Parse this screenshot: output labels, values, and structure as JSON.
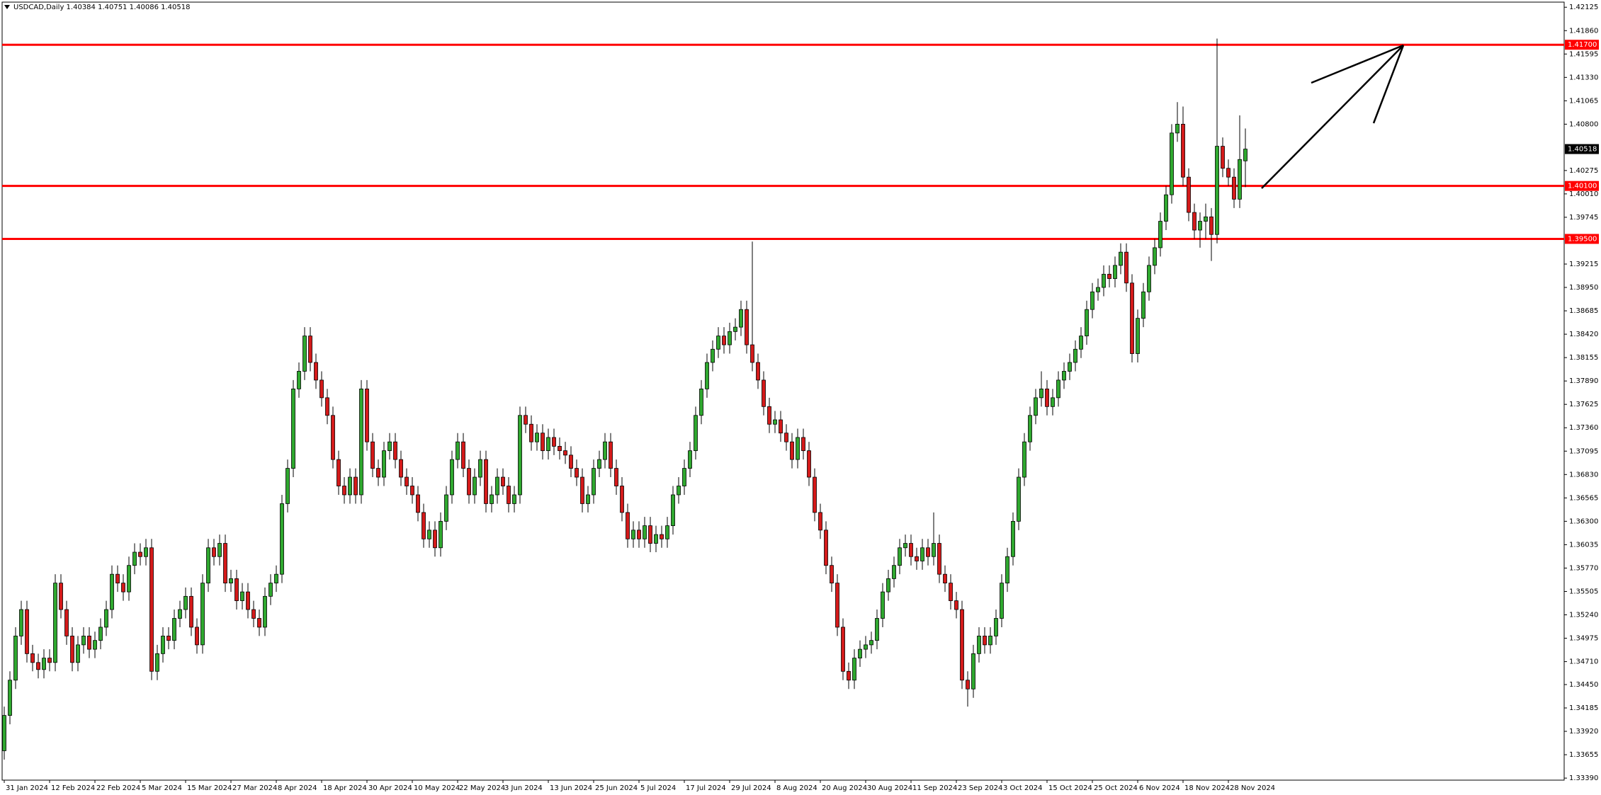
{
  "chart_data": {
    "type": "candlestick",
    "title": "USDCAD,Daily  1.40384 1.40751 1.40086 1.40518",
    "up_color": "#2fa82f",
    "down_color": "#d41a1a",
    "line_color": "#ff0000",
    "ylim": [
      1.33367,
      1.42183
    ],
    "yticks": [
      {
        "value": 1.42125,
        "label": "1.42125"
      },
      {
        "value": 1.4186,
        "label": "1.41860"
      },
      {
        "value": 1.41595,
        "label": "1.41595"
      },
      {
        "value": 1.4133,
        "label": "1.41330"
      },
      {
        "value": 1.41065,
        "label": "1.41065"
      },
      {
        "value": 1.408,
        "label": "1.40800"
      },
      {
        "value": 1.40275,
        "label": "1.40275"
      },
      {
        "value": 1.4001,
        "label": "1.40010"
      },
      {
        "value": 1.39745,
        "label": "1.39745"
      },
      {
        "value": 1.39215,
        "label": "1.39215"
      },
      {
        "value": 1.3895,
        "label": "1.38950"
      },
      {
        "value": 1.38685,
        "label": "1.38685"
      },
      {
        "value": 1.3842,
        "label": "1.38420"
      },
      {
        "value": 1.38155,
        "label": "1.38155"
      },
      {
        "value": 1.3789,
        "label": "1.37890"
      },
      {
        "value": 1.37625,
        "label": "1.37625"
      },
      {
        "value": 1.3736,
        "label": "1.37360"
      },
      {
        "value": 1.37095,
        "label": "1.37095"
      },
      {
        "value": 1.3683,
        "label": "1.36830"
      },
      {
        "value": 1.36565,
        "label": "1.36565"
      },
      {
        "value": 1.363,
        "label": "1.36300"
      },
      {
        "value": 1.36035,
        "label": "1.36035"
      },
      {
        "value": 1.3577,
        "label": "1.35770"
      },
      {
        "value": 1.35505,
        "label": "1.35505"
      },
      {
        "value": 1.3524,
        "label": "1.35240"
      },
      {
        "value": 1.34975,
        "label": "1.34975"
      },
      {
        "value": 1.3471,
        "label": "1.34710"
      },
      {
        "value": 1.3445,
        "label": "1.34450"
      },
      {
        "value": 1.34185,
        "label": "1.34185"
      },
      {
        "value": 1.3392,
        "label": "1.33920"
      },
      {
        "value": 1.33655,
        "label": "1.33655"
      },
      {
        "value": 1.3339,
        "label": "1.33390"
      }
    ],
    "hlines": [
      {
        "value": 1.417,
        "label": "1.41700"
      },
      {
        "value": 1.401,
        "label": "1.40100"
      },
      {
        "value": 1.395,
        "label": "1.39500"
      }
    ],
    "last_price": {
      "value": 1.40518,
      "label": "1.40518"
    },
    "categories": [
      "31 Jan 2024",
      null,
      null,
      null,
      null,
      null,
      null,
      null,
      "12 Feb 2024",
      null,
      null,
      null,
      null,
      null,
      null,
      null,
      "22 Feb 2024",
      null,
      null,
      null,
      null,
      null,
      null,
      null,
      "5 Mar 2024",
      null,
      null,
      null,
      null,
      null,
      null,
      null,
      "15 Mar 2024",
      null,
      null,
      null,
      null,
      null,
      null,
      null,
      "27 Mar 2024",
      null,
      null,
      null,
      null,
      null,
      null,
      null,
      "8 Apr 2024",
      null,
      null,
      null,
      null,
      null,
      null,
      null,
      "18 Apr 2024",
      null,
      null,
      null,
      null,
      null,
      null,
      null,
      "30 Apr 2024",
      null,
      null,
      null,
      null,
      null,
      null,
      null,
      "10 May 2024",
      null,
      null,
      null,
      null,
      null,
      null,
      null,
      "22 May 2024",
      null,
      null,
      null,
      null,
      null,
      null,
      null,
      "3 Jun 2024",
      null,
      null,
      null,
      null,
      null,
      null,
      null,
      "13 Jun 2024",
      null,
      null,
      null,
      null,
      null,
      null,
      null,
      "25 Jun 2024",
      null,
      null,
      null,
      null,
      null,
      null,
      null,
      "5 Jul 2024",
      null,
      null,
      null,
      null,
      null,
      null,
      null,
      "17 Jul 2024",
      null,
      null,
      null,
      null,
      null,
      null,
      null,
      "29 Jul 2024",
      null,
      null,
      null,
      null,
      null,
      null,
      null,
      "8 Aug 2024",
      null,
      null,
      null,
      null,
      null,
      null,
      null,
      "20 Aug 2024",
      null,
      null,
      null,
      null,
      null,
      null,
      null,
      "30 Aug 2024",
      null,
      null,
      null,
      null,
      null,
      null,
      null,
      "11 Sep 2024",
      null,
      null,
      null,
      null,
      null,
      null,
      null,
      "23 Sep 2024",
      null,
      null,
      null,
      null,
      null,
      null,
      null,
      "3 Oct 2024",
      null,
      null,
      null,
      null,
      null,
      null,
      null,
      "15 Oct 2024",
      null,
      null,
      null,
      null,
      null,
      null,
      null,
      "25 Oct 2024",
      null,
      null,
      null,
      null,
      null,
      null,
      null,
      "6 Nov 2024",
      null,
      null,
      null,
      null,
      null,
      null,
      null,
      "18 Nov 2024",
      null,
      null,
      null,
      null,
      null,
      null,
      null,
      "28 Nov 2024",
      null,
      null,
      null
    ],
    "open": [
      1.337,
      1.341,
      1.345,
      1.35,
      1.353,
      1.348,
      1.347,
      1.3462,
      1.3475,
      1.347,
      1.356,
      1.353,
      1.35,
      1.347,
      1.349,
      1.35,
      1.3485,
      1.3495,
      1.351,
      1.353,
      1.357,
      1.356,
      1.355,
      1.358,
      1.3595,
      1.359,
      1.36,
      1.346,
      1.348,
      1.35,
      1.3495,
      1.352,
      1.353,
      1.3545,
      1.351,
      1.349,
      1.356,
      1.36,
      1.359,
      1.3605,
      1.356,
      1.3565,
      1.354,
      1.355,
      1.353,
      1.352,
      1.351,
      1.3545,
      1.356,
      1.357,
      1.365,
      1.369,
      1.378,
      1.38,
      1.384,
      1.381,
      1.379,
      1.377,
      1.375,
      1.37,
      1.367,
      1.366,
      1.368,
      1.366,
      1.378,
      1.372,
      1.369,
      1.368,
      1.371,
      1.372,
      1.37,
      1.368,
      1.367,
      1.366,
      1.364,
      1.361,
      1.362,
      1.36,
      1.363,
      1.366,
      1.37,
      1.372,
      1.369,
      1.366,
      1.368,
      1.37,
      1.365,
      1.366,
      1.368,
      1.367,
      1.365,
      1.366,
      1.375,
      1.374,
      1.372,
      1.373,
      1.371,
      1.3725,
      1.3715,
      1.371,
      1.3705,
      1.369,
      1.368,
      1.365,
      1.366,
      1.369,
      1.37,
      1.372,
      1.369,
      1.367,
      1.364,
      1.361,
      1.362,
      1.361,
      1.3625,
      1.3605,
      1.3615,
      1.361,
      1.3625,
      1.366,
      1.367,
      1.369,
      1.371,
      1.375,
      1.378,
      1.381,
      1.3825,
      1.384,
      1.383,
      1.3845,
      1.385,
      1.387,
      1.383,
      1.381,
      1.379,
      1.376,
      1.374,
      1.3745,
      1.373,
      1.372,
      1.37,
      1.3725,
      1.371,
      1.368,
      1.364,
      1.362,
      1.358,
      1.356,
      1.351,
      1.346,
      1.345,
      1.3475,
      1.3485,
      1.349,
      1.3495,
      1.352,
      1.355,
      1.3565,
      1.358,
      1.36,
      1.3605,
      1.359,
      1.3585,
      1.36,
      1.359,
      1.3605,
      1.357,
      1.356,
      1.354,
      1.353,
      1.345,
      1.344,
      1.348,
      1.35,
      1.349,
      1.35,
      1.352,
      1.356,
      1.359,
      1.363,
      1.368,
      1.372,
      1.375,
      1.377,
      1.378,
      1.376,
      1.377,
      1.379,
      1.38,
      1.381,
      1.3825,
      1.384,
      1.387,
      1.389,
      1.3895,
      1.391,
      1.3905,
      1.392,
      1.3935,
      1.39,
      1.382,
      1.386,
      1.389,
      1.392,
      1.394,
      1.397,
      1.4,
      1.407,
      1.408,
      1.402,
      1.398,
      1.396,
      1.397,
      1.3975,
      1.3955,
      1.4055,
      1.403,
      1.402,
      1.3995,
      1.40384
    ],
    "high": [
      1.342,
      1.346,
      1.351,
      1.354,
      1.354,
      1.349,
      1.348,
      1.3485,
      1.3485,
      1.357,
      1.357,
      1.354,
      1.351,
      1.35,
      1.351,
      1.351,
      1.3505,
      1.352,
      1.354,
      1.358,
      1.358,
      1.357,
      1.359,
      1.3605,
      1.3605,
      1.361,
      1.361,
      1.349,
      1.351,
      1.351,
      1.353,
      1.354,
      1.3555,
      1.3555,
      1.352,
      1.357,
      1.361,
      1.361,
      1.3615,
      1.3615,
      1.3575,
      1.3575,
      1.356,
      1.356,
      1.354,
      1.353,
      1.3555,
      1.357,
      1.358,
      1.366,
      1.37,
      1.379,
      1.381,
      1.385,
      1.385,
      1.382,
      1.38,
      1.378,
      1.376,
      1.371,
      1.368,
      1.369,
      1.369,
      1.379,
      1.379,
      1.373,
      1.37,
      1.372,
      1.373,
      1.373,
      1.371,
      1.369,
      1.368,
      1.367,
      1.365,
      1.363,
      1.363,
      1.364,
      1.367,
      1.371,
      1.373,
      1.373,
      1.37,
      1.369,
      1.371,
      1.371,
      1.367,
      1.369,
      1.369,
      1.368,
      1.367,
      1.376,
      1.376,
      1.375,
      1.374,
      1.374,
      1.3735,
      1.3735,
      1.3725,
      1.372,
      1.3715,
      1.37,
      1.369,
      1.367,
      1.37,
      1.371,
      1.373,
      1.373,
      1.37,
      1.368,
      1.365,
      1.363,
      1.363,
      1.3635,
      1.3635,
      1.3625,
      1.3625,
      1.3635,
      1.367,
      1.368,
      1.37,
      1.372,
      1.376,
      1.379,
      1.382,
      1.3835,
      1.385,
      1.385,
      1.3855,
      1.386,
      1.388,
      1.388,
      1.3947,
      1.382,
      1.38,
      1.377,
      1.3755,
      1.3755,
      1.374,
      1.373,
      1.3735,
      1.3735,
      1.372,
      1.369,
      1.365,
      1.363,
      1.359,
      1.357,
      1.352,
      1.347,
      1.3485,
      1.3495,
      1.35,
      1.3505,
      1.353,
      1.356,
      1.3575,
      1.359,
      1.361,
      1.3615,
      1.3615,
      1.36,
      1.361,
      1.361,
      1.364,
      1.3615,
      1.358,
      1.357,
      1.355,
      1.354,
      1.346,
      1.349,
      1.351,
      1.351,
      1.351,
      1.353,
      1.357,
      1.36,
      1.364,
      1.369,
      1.373,
      1.376,
      1.378,
      1.38,
      1.379,
      1.378,
      1.38,
      1.381,
      1.382,
      1.3835,
      1.385,
      1.388,
      1.39,
      1.3905,
      1.392,
      1.392,
      1.393,
      1.3945,
      1.3945,
      1.391,
      1.387,
      1.39,
      1.393,
      1.395,
      1.398,
      1.401,
      1.408,
      1.4105,
      1.41,
      1.403,
      1.399,
      1.398,
      1.399,
      1.3985,
      1.4177,
      1.4065,
      1.404,
      1.403,
      1.409,
      1.40751
    ],
    "low": [
      1.336,
      1.34,
      1.344,
      1.349,
      1.347,
      1.346,
      1.3452,
      1.3452,
      1.346,
      1.346,
      1.352,
      1.349,
      1.346,
      1.346,
      1.348,
      1.3475,
      1.3475,
      1.3485,
      1.35,
      1.352,
      1.355,
      1.354,
      1.354,
      1.357,
      1.358,
      1.358,
      1.345,
      1.345,
      1.347,
      1.3485,
      1.3485,
      1.351,
      1.352,
      1.35,
      1.348,
      1.348,
      1.355,
      1.358,
      1.358,
      1.355,
      1.355,
      1.353,
      1.353,
      1.352,
      1.351,
      1.35,
      1.35,
      1.3535,
      1.355,
      1.356,
      1.364,
      1.368,
      1.377,
      1.379,
      1.38,
      1.378,
      1.376,
      1.374,
      1.369,
      1.366,
      1.365,
      1.365,
      1.365,
      1.365,
      1.371,
      1.368,
      1.367,
      1.367,
      1.37,
      1.369,
      1.367,
      1.366,
      1.365,
      1.363,
      1.36,
      1.36,
      1.359,
      1.359,
      1.362,
      1.365,
      1.369,
      1.368,
      1.365,
      1.365,
      1.367,
      1.364,
      1.364,
      1.365,
      1.366,
      1.364,
      1.364,
      1.365,
      1.373,
      1.371,
      1.371,
      1.37,
      1.37,
      1.3705,
      1.37,
      1.3695,
      1.368,
      1.367,
      1.364,
      1.364,
      1.365,
      1.368,
      1.369,
      1.368,
      1.366,
      1.363,
      1.36,
      1.36,
      1.36,
      1.36,
      1.3595,
      1.3595,
      1.36,
      1.36,
      1.3615,
      1.365,
      1.366,
      1.368,
      1.37,
      1.374,
      1.377,
      1.38,
      1.3815,
      1.382,
      1.382,
      1.3835,
      1.384,
      1.382,
      1.38,
      1.378,
      1.375,
      1.373,
      1.373,
      1.372,
      1.371,
      1.369,
      1.369,
      1.37,
      1.367,
      1.363,
      1.361,
      1.357,
      1.355,
      1.35,
      1.345,
      1.344,
      1.344,
      1.3465,
      1.3475,
      1.348,
      1.3485,
      1.351,
      1.354,
      1.3555,
      1.357,
      1.359,
      1.358,
      1.3575,
      1.3575,
      1.358,
      1.358,
      1.356,
      1.355,
      1.353,
      1.352,
      1.344,
      1.342,
      1.343,
      1.347,
      1.348,
      1.348,
      1.349,
      1.351,
      1.355,
      1.358,
      1.362,
      1.367,
      1.371,
      1.374,
      1.376,
      1.375,
      1.375,
      1.376,
      1.378,
      1.379,
      1.38,
      1.3815,
      1.383,
      1.386,
      1.388,
      1.3885,
      1.3895,
      1.3895,
      1.391,
      1.389,
      1.381,
      1.381,
      1.385,
      1.388,
      1.391,
      1.393,
      1.396,
      1.399,
      1.406,
      1.401,
      1.397,
      1.395,
      1.394,
      1.395,
      1.3925,
      1.3945,
      1.402,
      1.401,
      1.3985,
      1.3985,
      1.40086
    ],
    "close": [
      1.341,
      1.345,
      1.35,
      1.353,
      1.348,
      1.347,
      1.3462,
      1.3475,
      1.347,
      1.356,
      1.353,
      1.35,
      1.347,
      1.349,
      1.35,
      1.3485,
      1.3495,
      1.351,
      1.353,
      1.357,
      1.356,
      1.355,
      1.358,
      1.3595,
      1.359,
      1.36,
      1.346,
      1.348,
      1.35,
      1.3495,
      1.352,
      1.353,
      1.3545,
      1.351,
      1.349,
      1.356,
      1.36,
      1.359,
      1.3605,
      1.356,
      1.3565,
      1.354,
      1.355,
      1.353,
      1.352,
      1.351,
      1.3545,
      1.356,
      1.357,
      1.365,
      1.369,
      1.378,
      1.38,
      1.384,
      1.381,
      1.379,
      1.377,
      1.375,
      1.37,
      1.367,
      1.366,
      1.368,
      1.366,
      1.378,
      1.372,
      1.369,
      1.368,
      1.371,
      1.372,
      1.37,
      1.368,
      1.367,
      1.366,
      1.364,
      1.361,
      1.362,
      1.36,
      1.363,
      1.366,
      1.37,
      1.372,
      1.369,
      1.366,
      1.368,
      1.37,
      1.365,
      1.366,
      1.368,
      1.367,
      1.365,
      1.366,
      1.375,
      1.374,
      1.372,
      1.373,
      1.371,
      1.3725,
      1.3715,
      1.371,
      1.3705,
      1.369,
      1.368,
      1.365,
      1.366,
      1.369,
      1.37,
      1.372,
      1.369,
      1.367,
      1.364,
      1.361,
      1.362,
      1.361,
      1.3625,
      1.3605,
      1.3615,
      1.361,
      1.3625,
      1.366,
      1.367,
      1.369,
      1.371,
      1.375,
      1.378,
      1.381,
      1.3825,
      1.384,
      1.383,
      1.3845,
      1.385,
      1.387,
      1.383,
      1.381,
      1.379,
      1.376,
      1.374,
      1.3745,
      1.373,
      1.372,
      1.37,
      1.3725,
      1.371,
      1.368,
      1.364,
      1.362,
      1.358,
      1.356,
      1.351,
      1.346,
      1.345,
      1.3475,
      1.3485,
      1.349,
      1.3495,
      1.352,
      1.355,
      1.3565,
      1.358,
      1.36,
      1.3605,
      1.359,
      1.3585,
      1.36,
      1.359,
      1.3605,
      1.357,
      1.356,
      1.354,
      1.353,
      1.345,
      1.344,
      1.348,
      1.35,
      1.349,
      1.35,
      1.352,
      1.356,
      1.359,
      1.363,
      1.368,
      1.372,
      1.375,
      1.377,
      1.378,
      1.376,
      1.377,
      1.379,
      1.38,
      1.381,
      1.3825,
      1.384,
      1.387,
      1.389,
      1.3895,
      1.391,
      1.3905,
      1.392,
      1.3935,
      1.39,
      1.382,
      1.386,
      1.389,
      1.392,
      1.394,
      1.397,
      1.4,
      1.407,
      1.408,
      1.402,
      1.398,
      1.396,
      1.397,
      1.3975,
      1.3955,
      1.4055,
      1.403,
      1.402,
      1.3995,
      1.404,
      1.40518
    ]
  }
}
